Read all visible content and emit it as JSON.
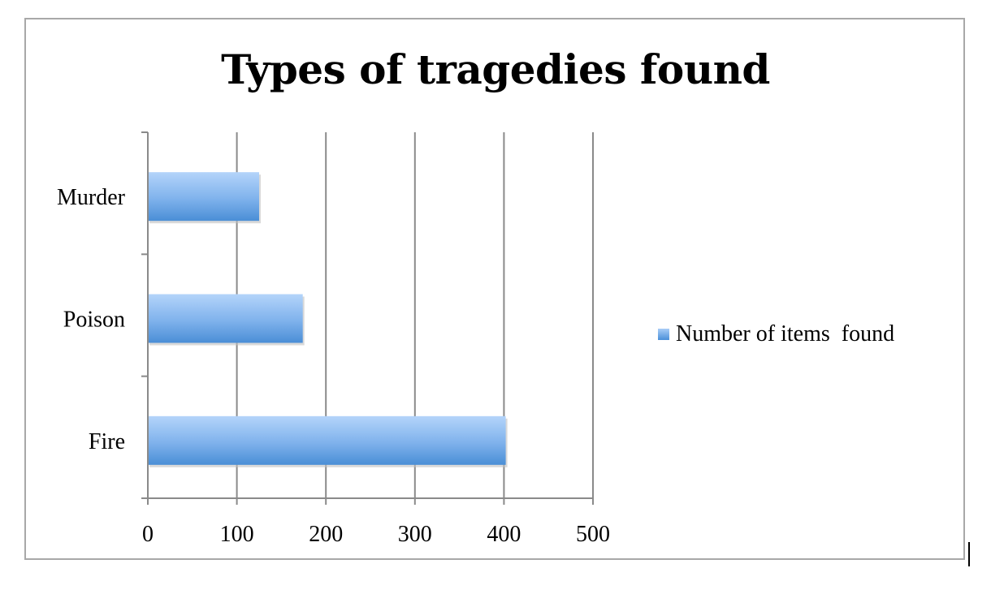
{
  "chart_data": {
    "type": "bar",
    "orientation": "horizontal",
    "title": "Types of tragedies found",
    "categories": [
      "Murder",
      "Poison",
      "Fire"
    ],
    "series": [
      {
        "name": "Number of items  found",
        "values": [
          125,
          174,
          402
        ],
        "color": "#5b9bd5"
      }
    ],
    "xlim": [
      0,
      500
    ],
    "x_ticks": [
      "0",
      "100",
      "200",
      "300",
      "400",
      "500"
    ],
    "grid": true,
    "legend_position": "right"
  }
}
